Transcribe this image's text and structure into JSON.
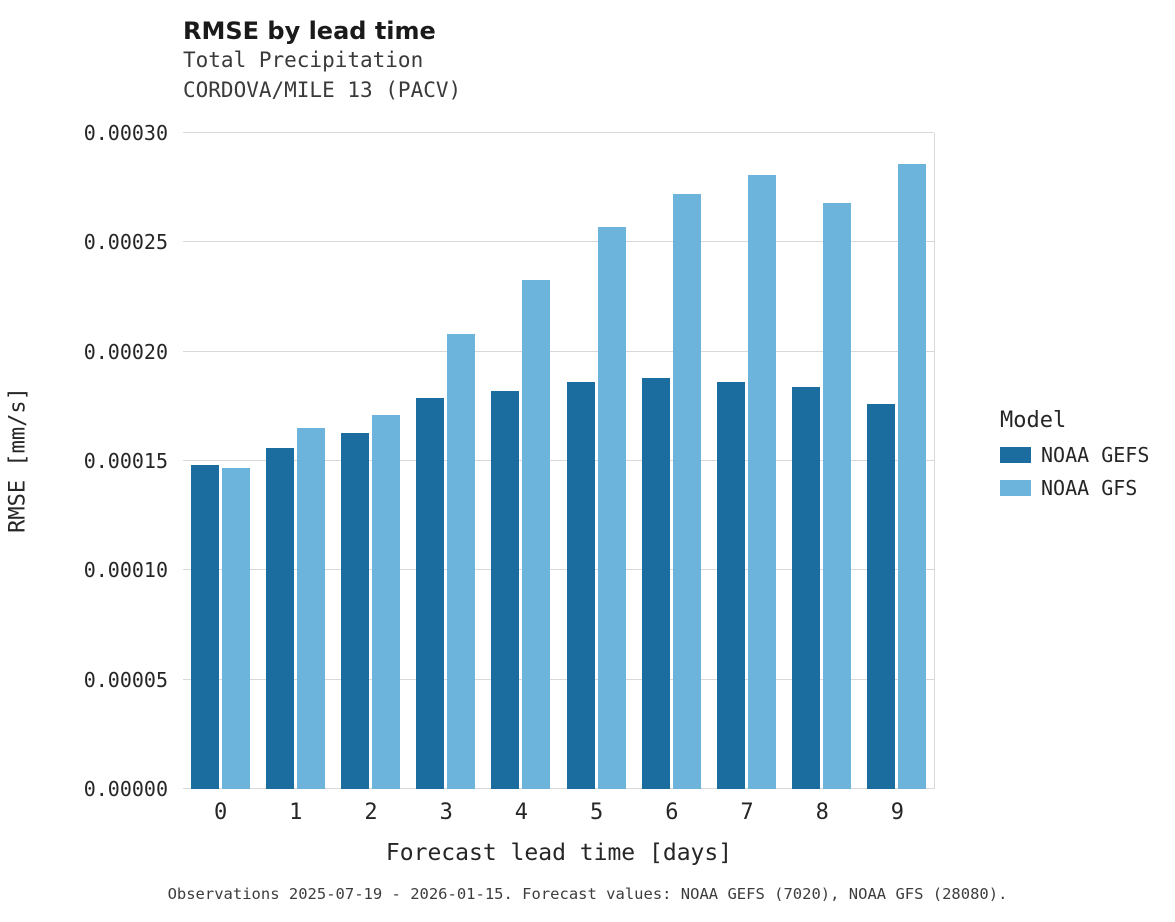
{
  "header": {
    "title": "RMSE by lead time",
    "subtitle_variable": "Total Precipitation",
    "subtitle_station": "CORDOVA/MILE 13 (PACV)"
  },
  "chart_data": {
    "type": "bar",
    "title": "RMSE by lead time",
    "subtitle": [
      "Total Precipitation",
      "CORDOVA/MILE 13 (PACV)"
    ],
    "categories": [
      "0",
      "1",
      "2",
      "3",
      "4",
      "5",
      "6",
      "7",
      "8",
      "9"
    ],
    "series": [
      {
        "name": "NOAA GEFS",
        "color": "#1a6d9e",
        "values": [
          0.000148,
          0.000156,
          0.000163,
          0.000179,
          0.000182,
          0.000186,
          0.000188,
          0.000186,
          0.000184,
          0.000176
        ]
      },
      {
        "name": "NOAA GFS",
        "color": "#6db4dc",
        "values": [
          0.000147,
          0.000165,
          0.000171,
          0.000208,
          0.000233,
          0.000257,
          0.000272,
          0.000281,
          0.000268,
          0.000286
        ]
      }
    ],
    "xlabel": "Forecast lead time [days]",
    "ylabel": "RMSE [mm/s]",
    "ylim": [
      0,
      0.0003
    ],
    "yticks": [
      "0.00000",
      "0.00005",
      "0.00010",
      "0.00015",
      "0.00020",
      "0.00025",
      "0.00030"
    ],
    "grid": true,
    "legend_title": "Model",
    "legend_position": "right"
  },
  "footer": {
    "caption": "Observations 2025-07-19 - 2026-01-15. Forecast values: NOAA GEFS (7020), NOAA GFS (28080)."
  }
}
